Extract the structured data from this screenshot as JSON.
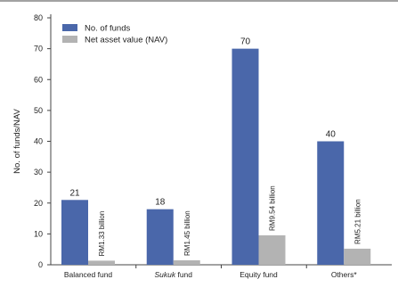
{
  "chart_data": {
    "type": "bar",
    "ylabel": "No. of funds/NAV",
    "ylim": [
      0,
      80
    ],
    "yticks": [
      0,
      10,
      20,
      30,
      40,
      50,
      60,
      70,
      80
    ],
    "grid": false,
    "legend_position": "top-left",
    "categories": [
      {
        "label": "Balanced fund",
        "italic_part": "",
        "rest": ""
      },
      {
        "label": "Sukuk",
        "italic_part": "Sukuk",
        "rest": " fund"
      },
      {
        "label": "Equity fund",
        "italic_part": "",
        "rest": ""
      },
      {
        "label": "Others*",
        "italic_part": "",
        "rest": ""
      }
    ],
    "series": [
      {
        "name": "No. of funds",
        "color": "#4A67AA",
        "values": [
          21,
          18,
          70,
          40
        ],
        "labels": [
          "21",
          "18",
          "70",
          "40"
        ]
      },
      {
        "name": "Net asset value (NAV)",
        "color": "#B3B3B3",
        "values": [
          1.33,
          1.45,
          9.54,
          5.21
        ],
        "labels": [
          "RM1.33 billion",
          "RM1.45 billion",
          "RM9.54 billion",
          "RM5.21 billion"
        ]
      }
    ]
  }
}
